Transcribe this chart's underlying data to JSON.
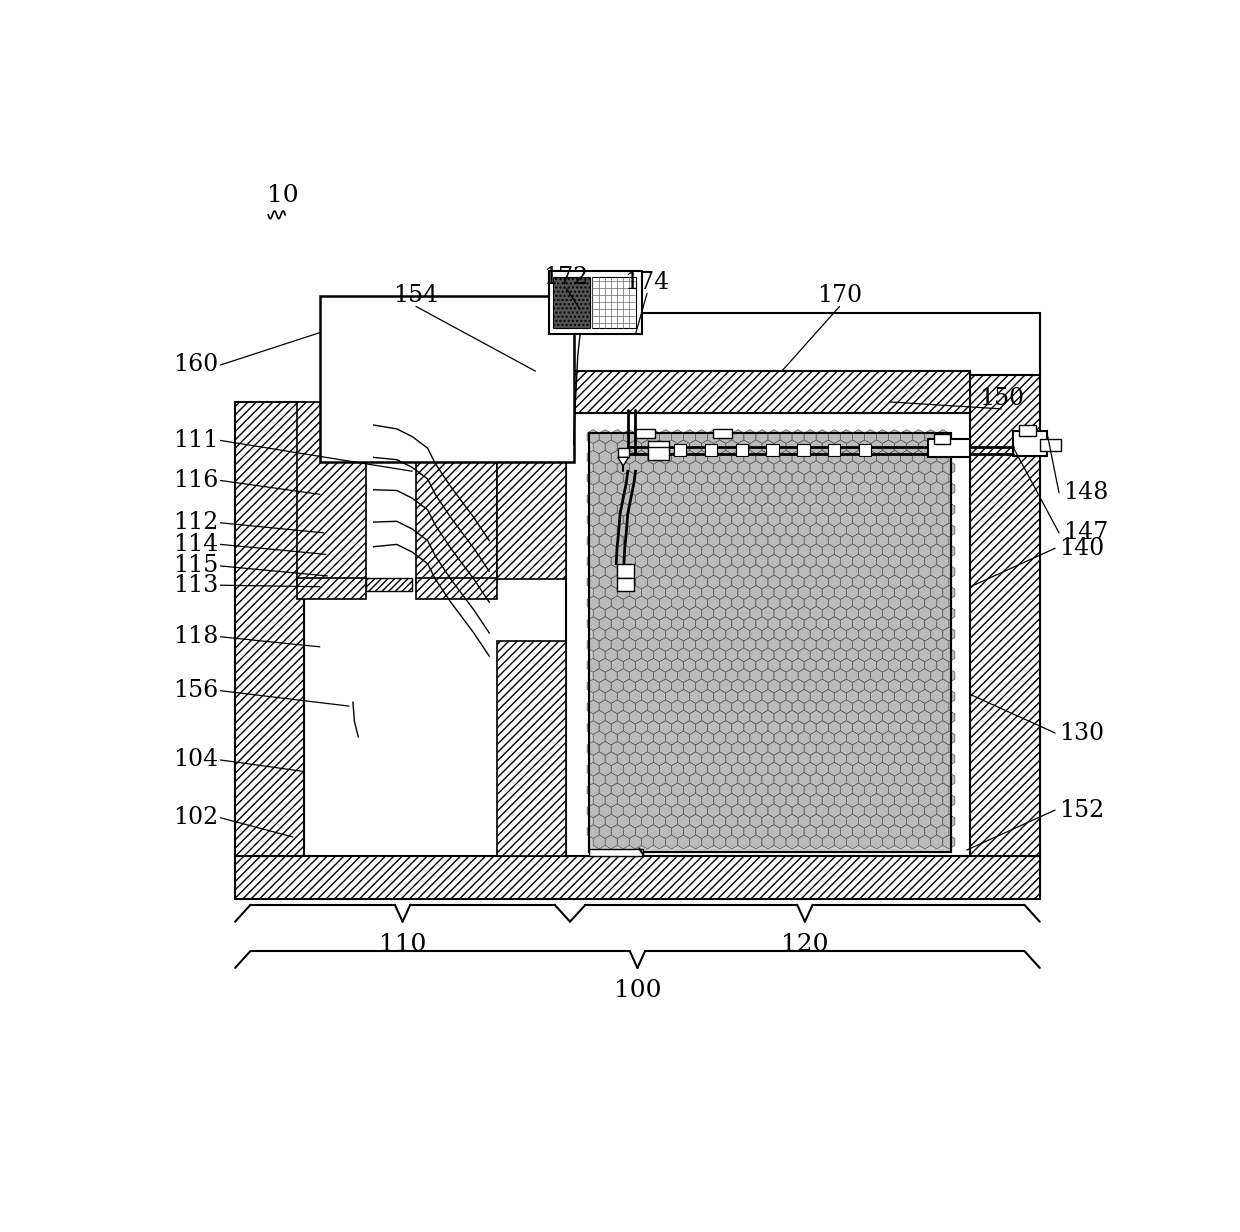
{
  "bg_color": "#ffffff",
  "line_color": "#000000",
  "hatch_color": "#000000"
}
